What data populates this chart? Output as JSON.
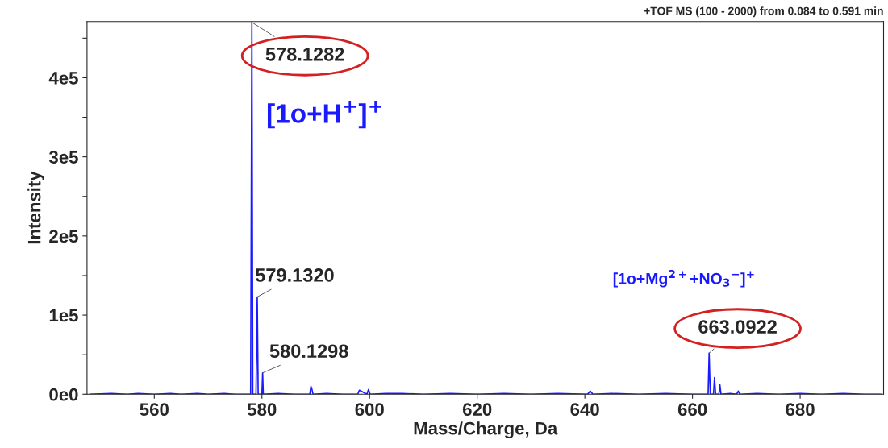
{
  "chart_data": {
    "type": "line",
    "title": "+TOF MS (100 - 2000) from 0.084 to 0.591 min",
    "xlabel": "Mass/Charge, Da",
    "ylabel": "Intensity",
    "series": [
      {
        "color": "#1a1aff",
        "x": [
          548,
          552,
          555,
          557,
          560,
          563,
          565,
          568,
          570,
          573,
          575,
          577.9,
          578.13,
          578.2,
          578.3,
          578.9,
          579.13,
          579.2,
          579.3,
          580.0,
          580.13,
          580.25,
          583,
          586,
          588.9,
          589.1,
          589.3,
          589.5,
          592,
          595,
          597.8,
          598.1,
          598.4,
          599.5,
          599.8,
          600.1,
          603,
          606,
          610,
          615,
          620,
          625,
          630,
          635,
          640.5,
          641.0,
          641.5,
          645,
          650,
          655,
          660,
          662.9,
          663.09,
          663.3,
          663.9,
          664.09,
          664.3,
          664.9,
          665.09,
          665.3,
          667,
          668.2,
          668.5,
          668.8,
          672,
          676,
          680,
          684,
          688,
          692,
          695
        ],
        "values": [
          0,
          1000,
          0,
          1000,
          0,
          1000,
          0,
          1000,
          0,
          1000,
          0,
          0,
          470000,
          298000,
          0,
          0,
          123000,
          75000,
          0,
          0,
          27000,
          0,
          1000,
          0,
          0,
          10000,
          6000,
          0,
          1000,
          0,
          0,
          5000,
          4000,
          0,
          6000,
          0,
          1000,
          1000,
          0,
          1000,
          0,
          1000,
          0,
          1000,
          0,
          4000,
          0,
          1000,
          0,
          1000,
          0,
          0,
          52000,
          0,
          0,
          21000,
          0,
          0,
          12000,
          0,
          1000,
          0,
          4000,
          0,
          1000,
          0,
          1000,
          0,
          1000,
          0,
          0
        ]
      }
    ],
    "xlim": [
      547.5,
      695.5
    ],
    "ylim": [
      0,
      471000
    ],
    "xticks": [
      560,
      580,
      600,
      620,
      640,
      660,
      680
    ],
    "yticks": [
      {
        "value": 0,
        "label": "0e0"
      },
      {
        "value": 50000,
        "label": null
      },
      {
        "value": 100000,
        "label": "1e5"
      },
      {
        "value": 150000,
        "label": null
      },
      {
        "value": 200000,
        "label": "2e5"
      },
      {
        "value": 250000,
        "label": null
      },
      {
        "value": 300000,
        "label": "3e5"
      },
      {
        "value": 350000,
        "label": null
      },
      {
        "value": 400000,
        "label": "4e5"
      },
      {
        "value": 450000,
        "label": null
      }
    ],
    "grid": false,
    "legend": false,
    "annotations": [
      {
        "text": "578.1282",
        "x": 578.1282,
        "y": 470000
      },
      {
        "text": "579.1320",
        "x": 579.132,
        "y": 123000
      },
      {
        "text": "580.1298",
        "x": 580.1298,
        "y": 27000
      },
      {
        "text": "663.0922",
        "x": 663.0922,
        "y": 52000
      },
      "[1o+H$^{+}$]$^{+}$",
      "[1o+Mg$^{2+}$+NO$_{3}$$^{−}$]$^{+}$"
    ]
  }
}
